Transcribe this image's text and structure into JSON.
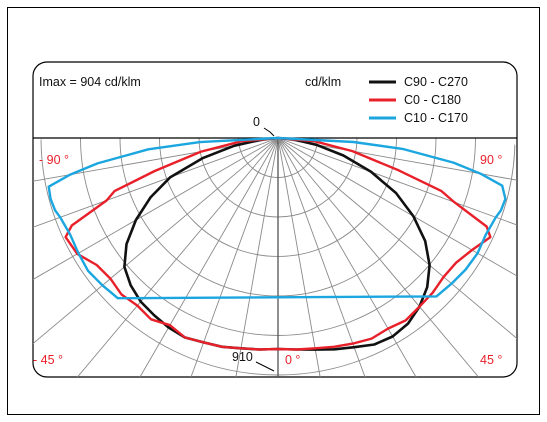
{
  "chart_data": {
    "type": "polar-photometric",
    "imax_label": "Imax = 904 cd/klm",
    "unit_label": "cd/klm",
    "r_max": 910,
    "r_max_label": "910",
    "zero_label": "0",
    "angle_labels": {
      "left_horizontal": "- 90 °",
      "right_horizontal": "90 °",
      "left_lower": "- 45 °",
      "right_lower": "45 °",
      "bottom": "0 °"
    },
    "label_colors": {
      "angle": "#e8202a",
      "text": "#111111"
    },
    "series": [
      {
        "name": "C90 - C270",
        "color": "#111111",
        "points": [
          [
            -90,
            0
          ],
          [
            -85,
            60
          ],
          [
            -80,
            170
          ],
          [
            -75,
            300
          ],
          [
            -70,
            440
          ],
          [
            -65,
            540
          ],
          [
            -60,
            630
          ],
          [
            -55,
            710
          ],
          [
            -50,
            770
          ],
          [
            -45,
            800
          ],
          [
            -40,
            820
          ],
          [
            -35,
            830
          ],
          [
            -30,
            840
          ],
          [
            -25,
            845
          ],
          [
            -20,
            835
          ],
          [
            -15,
            830
          ],
          [
            -10,
            820
          ],
          [
            -5,
            815
          ],
          [
            0,
            810
          ],
          [
            5,
            815
          ],
          [
            10,
            825
          ],
          [
            15,
            840
          ],
          [
            20,
            855
          ],
          [
            25,
            875
          ],
          [
            30,
            880
          ],
          [
            35,
            870
          ],
          [
            40,
            845
          ],
          [
            45,
            810
          ],
          [
            50,
            760
          ],
          [
            55,
            690
          ],
          [
            60,
            600
          ],
          [
            65,
            500
          ],
          [
            70,
            380
          ],
          [
            75,
            260
          ],
          [
            80,
            150
          ],
          [
            85,
            60
          ],
          [
            90,
            0
          ]
        ]
      },
      {
        "name": "C0 - C180",
        "color": "#e8202a",
        "points": [
          [
            -90,
            0
          ],
          [
            -85,
            140
          ],
          [
            -80,
            300
          ],
          [
            -75,
            490
          ],
          [
            -72,
            660
          ],
          [
            -70,
            700
          ],
          [
            -67,
            860
          ],
          [
            -65,
            900
          ],
          [
            -60,
            890
          ],
          [
            -55,
            850
          ],
          [
            -50,
            840
          ],
          [
            -45,
            850
          ],
          [
            -40,
            840
          ],
          [
            -35,
            850
          ],
          [
            -30,
            830
          ],
          [
            -25,
            845
          ],
          [
            -20,
            835
          ],
          [
            -15,
            830
          ],
          [
            -10,
            820
          ],
          [
            -5,
            815
          ],
          [
            0,
            810
          ],
          [
            5,
            815
          ],
          [
            10,
            820
          ],
          [
            15,
            830
          ],
          [
            20,
            840
          ],
          [
            25,
            850
          ],
          [
            30,
            845
          ],
          [
            35,
            855
          ],
          [
            40,
            845
          ],
          [
            45,
            840
          ],
          [
            50,
            830
          ],
          [
            55,
            835
          ],
          [
            60,
            860
          ],
          [
            65,
            900
          ],
          [
            67,
            870
          ],
          [
            70,
            720
          ],
          [
            72,
            660
          ],
          [
            75,
            480
          ],
          [
            80,
            290
          ],
          [
            85,
            140
          ],
          [
            90,
            0
          ]
        ]
      },
      {
        "name": "C10 - C170",
        "color": "#1ba6e0",
        "points": [
          [
            -90,
            0
          ],
          [
            -87,
            300
          ],
          [
            -85,
            500
          ],
          [
            -82,
            700
          ],
          [
            -80,
            810
          ],
          [
            -78,
            900
          ],
          [
            -75,
            904
          ],
          [
            -72,
            900
          ],
          [
            -70,
            890
          ],
          [
            -65,
            880
          ],
          [
            -60,
            885
          ],
          [
            -55,
            890
          ],
          [
            -50,
            880
          ],
          [
            -45,
            870
          ],
          [
            45,
            860
          ],
          [
            50,
            870
          ],
          [
            55,
            880
          ],
          [
            60,
            885
          ],
          [
            65,
            880
          ],
          [
            70,
            890
          ],
          [
            72,
            900
          ],
          [
            75,
            904
          ],
          [
            78,
            880
          ],
          [
            80,
            790
          ],
          [
            82,
            680
          ],
          [
            85,
            480
          ],
          [
            87,
            290
          ],
          [
            90,
            0
          ]
        ]
      }
    ]
  }
}
